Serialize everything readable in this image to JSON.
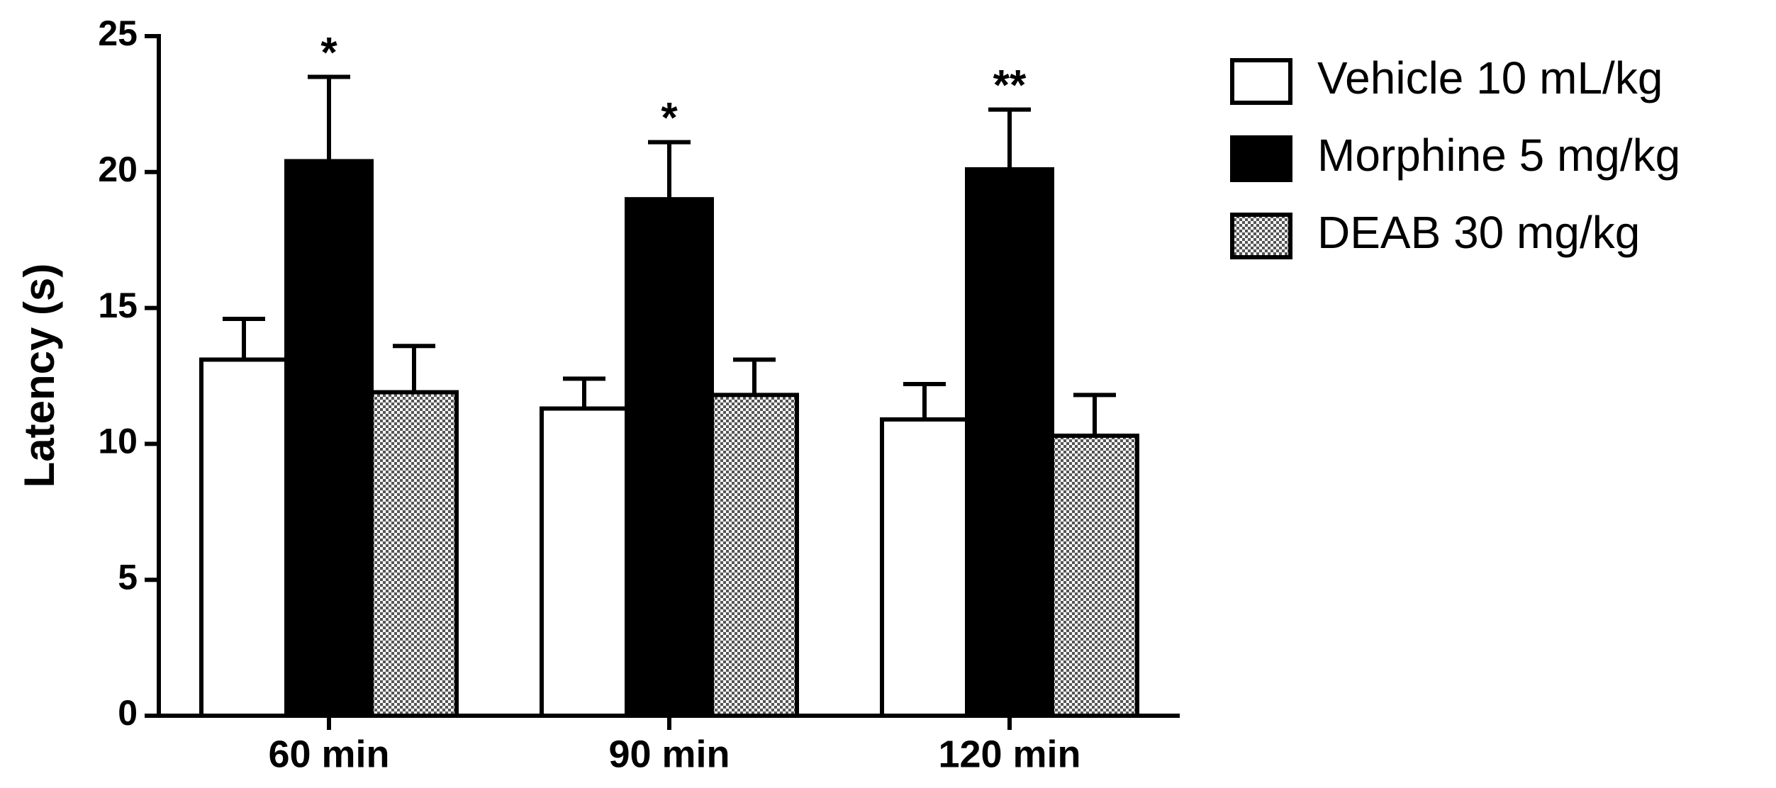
{
  "chart_data": {
    "type": "bar",
    "y_label": "Latency (s)",
    "categories": [
      "60 min",
      "90 min",
      "120 min"
    ],
    "series": [
      {
        "name": "Vehicle 10 mL/kg",
        "color": "#ffffff",
        "values": [
          13.1,
          11.3,
          10.9
        ],
        "errors": [
          1.5,
          1.1,
          1.3
        ]
      },
      {
        "name": "Morphine 5 mg/kg",
        "color": "#000000",
        "values": [
          20.4,
          19.0,
          20.1
        ],
        "errors": [
          3.1,
          2.1,
          2.2
        ],
        "significance": [
          "*",
          "*",
          "**"
        ]
      },
      {
        "name": "DEAB 30 mg/kg",
        "color": "checkered",
        "values": [
          11.9,
          11.8,
          10.3
        ],
        "errors": [
          1.7,
          1.3,
          1.5
        ]
      }
    ],
    "ylim": [
      0,
      25
    ],
    "yticks": [
      0,
      5,
      10,
      15,
      20,
      25
    ],
    "grid": false,
    "legend": "right"
  }
}
